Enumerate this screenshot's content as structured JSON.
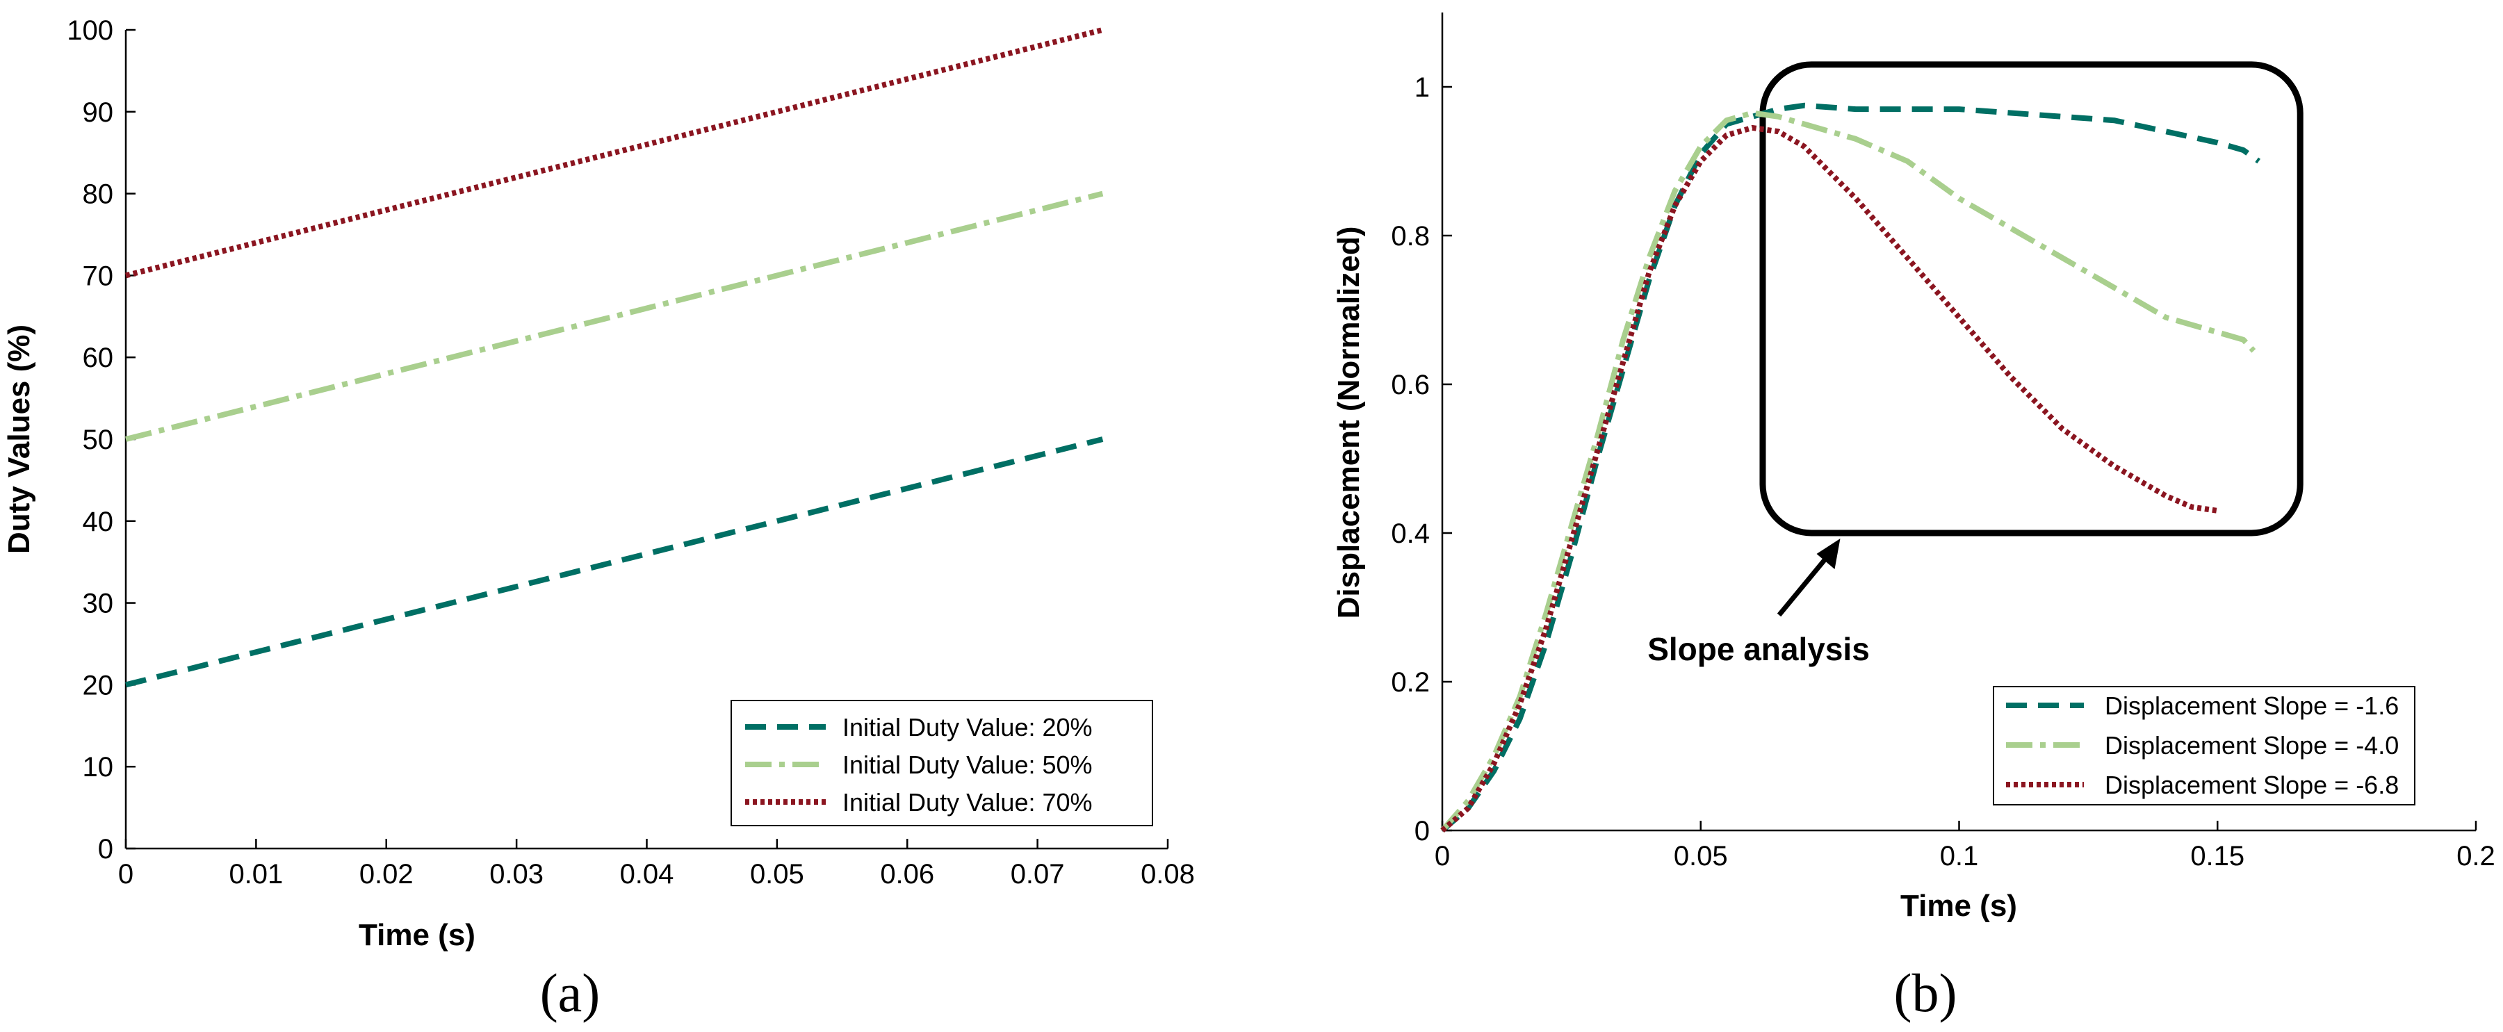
{
  "chart_data": [
    {
      "type": "line",
      "panel": "(a)",
      "title": "",
      "xlabel": "Time (s)",
      "ylabel": "Duty Values (%)",
      "xlim": [
        0,
        0.08
      ],
      "ylim": [
        0,
        100
      ],
      "xticks": [
        0,
        0.01,
        0.02,
        0.03,
        0.04,
        0.05,
        0.06,
        0.07,
        0.08
      ],
      "xtick_labels": [
        "0",
        "0.01",
        "0.02",
        "0.03",
        "0.04",
        "0.05",
        "0.06",
        "0.07",
        "0.08"
      ],
      "yticks": [
        0,
        10,
        20,
        30,
        40,
        50,
        60,
        70,
        80,
        90,
        100
      ],
      "ytick_labels": [
        "0",
        "10",
        "20",
        "30",
        "40",
        "50",
        "60",
        "70",
        "80",
        "90",
        "100"
      ],
      "grid": false,
      "legend_position": "bottom-right",
      "series": [
        {
          "name": "Initial Duty Value: 20%",
          "color": "#006f64",
          "style": "dashed",
          "x": [
            0,
            0.075
          ],
          "y": [
            20,
            50
          ]
        },
        {
          "name": "Initial Duty Value: 50%",
          "color": "#a9cf8e",
          "style": "dashdot",
          "x": [
            0,
            0.075
          ],
          "y": [
            50,
            80
          ]
        },
        {
          "name": "Initial Duty Value: 70%",
          "color": "#8b1520",
          "style": "dotted",
          "x": [
            0,
            0.075
          ],
          "y": [
            70,
            100
          ]
        }
      ]
    },
    {
      "type": "line",
      "panel": "(b)",
      "title": "",
      "xlabel": "Time (s)",
      "ylabel": "Displacement (Normalized)",
      "xlim": [
        0,
        0.2
      ],
      "ylim": [
        0,
        1.1
      ],
      "xticks": [
        0,
        0.05,
        0.1,
        0.15,
        0.2
      ],
      "xtick_labels": [
        "0",
        "0.05",
        "0.1",
        "0.15",
        "0.2"
      ],
      "yticks": [
        0,
        0.2,
        0.4,
        0.6,
        0.8,
        1
      ],
      "ytick_labels": [
        "0",
        "0.2",
        "0.4",
        "0.6",
        "0.8",
        "1"
      ],
      "grid": false,
      "legend_position": "bottom-right",
      "annotation": {
        "text": "Slope analysis",
        "box_x": [
          0.062,
          0.166
        ],
        "box_y": [
          0.4,
          1.03
        ],
        "arrow_tip": [
          0.077,
          0.4
        ]
      },
      "series": [
        {
          "name": "Displacement Slope = -1.6",
          "color": "#006f64",
          "style": "dashed",
          "x": [
            0,
            0.005,
            0.01,
            0.015,
            0.02,
            0.025,
            0.03,
            0.035,
            0.04,
            0.045,
            0.05,
            0.055,
            0.06,
            0.065,
            0.07,
            0.08,
            0.09,
            0.1,
            0.11,
            0.12,
            0.13,
            0.14,
            0.15,
            0.155,
            0.158
          ],
          "y": [
            0,
            0.03,
            0.08,
            0.15,
            0.25,
            0.37,
            0.5,
            0.62,
            0.74,
            0.84,
            0.91,
            0.95,
            0.96,
            0.97,
            0.975,
            0.97,
            0.97,
            0.97,
            0.965,
            0.96,
            0.955,
            0.94,
            0.925,
            0.915,
            0.9
          ]
        },
        {
          "name": "Displacement Slope = -4.0",
          "color": "#a9cf8e",
          "style": "dashdot",
          "x": [
            0,
            0.005,
            0.01,
            0.015,
            0.02,
            0.025,
            0.03,
            0.035,
            0.04,
            0.045,
            0.05,
            0.055,
            0.06,
            0.065,
            0.07,
            0.08,
            0.09,
            0.1,
            0.11,
            0.12,
            0.13,
            0.14,
            0.15,
            0.155,
            0.157
          ],
          "y": [
            0,
            0.04,
            0.1,
            0.18,
            0.29,
            0.41,
            0.53,
            0.66,
            0.77,
            0.86,
            0.92,
            0.955,
            0.965,
            0.96,
            0.95,
            0.93,
            0.9,
            0.85,
            0.81,
            0.77,
            0.73,
            0.69,
            0.67,
            0.66,
            0.645
          ]
        },
        {
          "name": "Displacement Slope = -6.8",
          "color": "#8b1520",
          "style": "dotted",
          "x": [
            0,
            0.005,
            0.01,
            0.015,
            0.02,
            0.025,
            0.03,
            0.035,
            0.04,
            0.045,
            0.05,
            0.055,
            0.06,
            0.065,
            0.07,
            0.08,
            0.09,
            0.1,
            0.11,
            0.12,
            0.13,
            0.14,
            0.145,
            0.15
          ],
          "y": [
            0,
            0.03,
            0.09,
            0.17,
            0.27,
            0.39,
            0.51,
            0.63,
            0.75,
            0.84,
            0.9,
            0.935,
            0.945,
            0.94,
            0.92,
            0.85,
            0.77,
            0.69,
            0.61,
            0.54,
            0.49,
            0.45,
            0.435,
            0.43
          ]
        }
      ]
    }
  ]
}
